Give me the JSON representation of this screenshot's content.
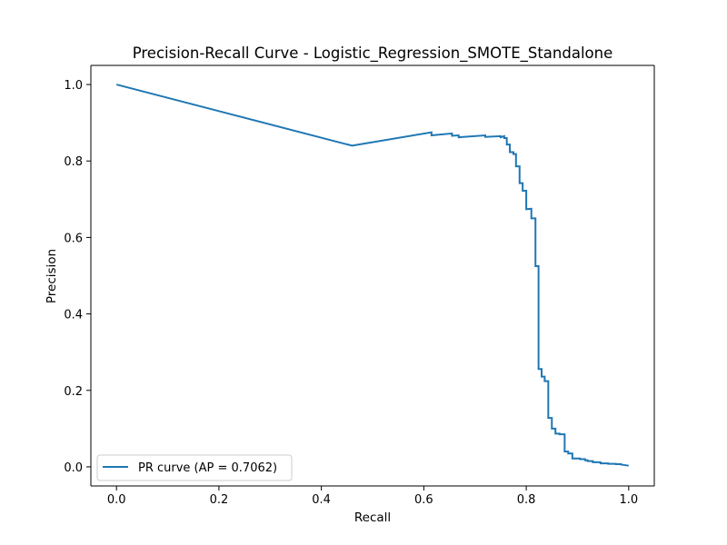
{
  "chart_data": {
    "type": "line",
    "title": "Precision-Recall Curve - Logistic_Regression_SMOTE_Standalone",
    "xlabel": "Recall",
    "ylabel": "Precision",
    "xlim": [
      -0.05,
      1.05
    ],
    "ylim": [
      -0.05,
      1.05
    ],
    "x_ticks": [
      0.0,
      0.2,
      0.4,
      0.6,
      0.8,
      1.0
    ],
    "y_ticks": [
      0.0,
      0.2,
      0.4,
      0.6,
      0.8,
      1.0
    ],
    "x_tick_labels": [
      "0.0",
      "0.2",
      "0.4",
      "0.6",
      "0.8",
      "1.0"
    ],
    "y_tick_labels": [
      "0.0",
      "0.2",
      "0.4",
      "0.6",
      "0.8",
      "1.0"
    ],
    "grid": false,
    "legend_position": "lower-left",
    "colors": {
      "line": "#1f77b4",
      "axes": "#000000",
      "legend_border": "#cccccc"
    },
    "series": [
      {
        "name": "PR curve (AP = 0.7062)",
        "x": [
          0.0,
          0.46,
          0.615,
          0.615,
          0.655,
          0.655,
          0.668,
          0.668,
          0.72,
          0.72,
          0.75,
          0.75,
          0.757,
          0.757,
          0.762,
          0.762,
          0.768,
          0.768,
          0.775,
          0.775,
          0.78,
          0.78,
          0.787,
          0.787,
          0.793,
          0.793,
          0.8,
          0.8,
          0.81,
          0.81,
          0.818,
          0.818,
          0.824,
          0.824,
          0.83,
          0.83,
          0.836,
          0.836,
          0.843,
          0.843,
          0.85,
          0.85,
          0.857,
          0.857,
          0.865,
          0.865,
          0.875,
          0.875,
          0.882,
          0.882,
          0.89,
          0.89,
          0.905,
          0.905,
          0.915,
          0.915,
          0.92,
          0.92,
          0.93,
          0.93,
          0.945,
          0.945,
          0.96,
          0.96,
          0.975,
          0.975,
          0.985,
          0.985,
          1.0
        ],
        "y": [
          1.0,
          0.84,
          0.875,
          0.867,
          0.872,
          0.866,
          0.867,
          0.862,
          0.867,
          0.863,
          0.865,
          0.862,
          0.865,
          0.86,
          0.86,
          0.843,
          0.843,
          0.823,
          0.823,
          0.818,
          0.818,
          0.786,
          0.786,
          0.742,
          0.742,
          0.722,
          0.722,
          0.674,
          0.675,
          0.65,
          0.65,
          0.525,
          0.525,
          0.256,
          0.256,
          0.236,
          0.236,
          0.224,
          0.224,
          0.128,
          0.128,
          0.1,
          0.1,
          0.087,
          0.087,
          0.085,
          0.085,
          0.04,
          0.04,
          0.035,
          0.035,
          0.022,
          0.022,
          0.02,
          0.02,
          0.017,
          0.017,
          0.015,
          0.015,
          0.012,
          0.012,
          0.009,
          0.009,
          0.008,
          0.008,
          0.007,
          0.007,
          0.006,
          0.003
        ]
      }
    ]
  }
}
